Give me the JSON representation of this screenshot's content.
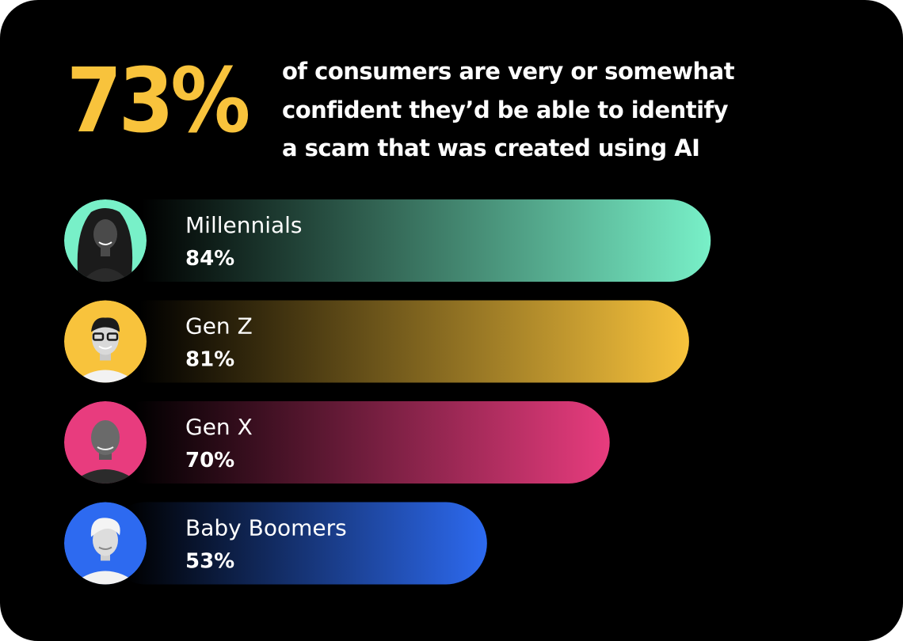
{
  "headline": {
    "value": "73%",
    "color": "#f8c33c"
  },
  "subtext": {
    "lines": [
      "of consumers are very or somewhat",
      "confident they’d be able to identify",
      "a scam that was created using AI"
    ]
  },
  "chart_data": {
    "type": "bar",
    "orientation": "horizontal",
    "categories": [
      "Millennials",
      "Gen Z",
      "Gen X",
      "Baby Boomers"
    ],
    "values": [
      84,
      81,
      70,
      53
    ],
    "value_labels": [
      "84%",
      "81%",
      "70%",
      "53%"
    ],
    "unit": "%",
    "xlim": [
      0,
      100
    ],
    "grid": false,
    "colors": [
      "#78f0c8",
      "#f8c33c",
      "#e83c7e",
      "#2d6af0"
    ],
    "icons": [
      "avatar-woman-braids",
      "avatar-man-glasses",
      "avatar-man-bald",
      "avatar-woman-gray-hair"
    ]
  }
}
